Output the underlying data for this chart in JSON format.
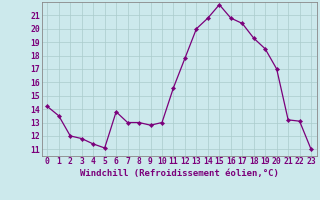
{
  "x": [
    0,
    1,
    2,
    3,
    4,
    5,
    6,
    7,
    8,
    9,
    10,
    11,
    12,
    13,
    14,
    15,
    16,
    17,
    18,
    19,
    20,
    21,
    22,
    23
  ],
  "y": [
    14.2,
    13.5,
    12.0,
    11.8,
    11.4,
    11.1,
    13.8,
    13.0,
    13.0,
    12.8,
    13.0,
    15.6,
    17.8,
    20.0,
    20.8,
    21.8,
    20.8,
    20.4,
    19.3,
    18.5,
    17.0,
    13.2,
    13.1,
    11.0
  ],
  "line_color": "#7b007b",
  "marker": "D",
  "marker_size": 2.2,
  "background_color": "#cce9ec",
  "grid_color": "#aacccc",
  "xlabel": "Windchill (Refroidissement éolien,°C)",
  "xlabel_fontsize": 6.5,
  "xlim": [
    -0.5,
    23.5
  ],
  "ylim": [
    10.5,
    22.0
  ],
  "xticks": [
    0,
    1,
    2,
    3,
    4,
    5,
    6,
    7,
    8,
    9,
    10,
    11,
    12,
    13,
    14,
    15,
    16,
    17,
    18,
    19,
    20,
    21,
    22,
    23
  ],
  "yticks": [
    11,
    12,
    13,
    14,
    15,
    16,
    17,
    18,
    19,
    20,
    21
  ],
  "tick_fontsize": 5.8,
  "spine_color": "#888888"
}
